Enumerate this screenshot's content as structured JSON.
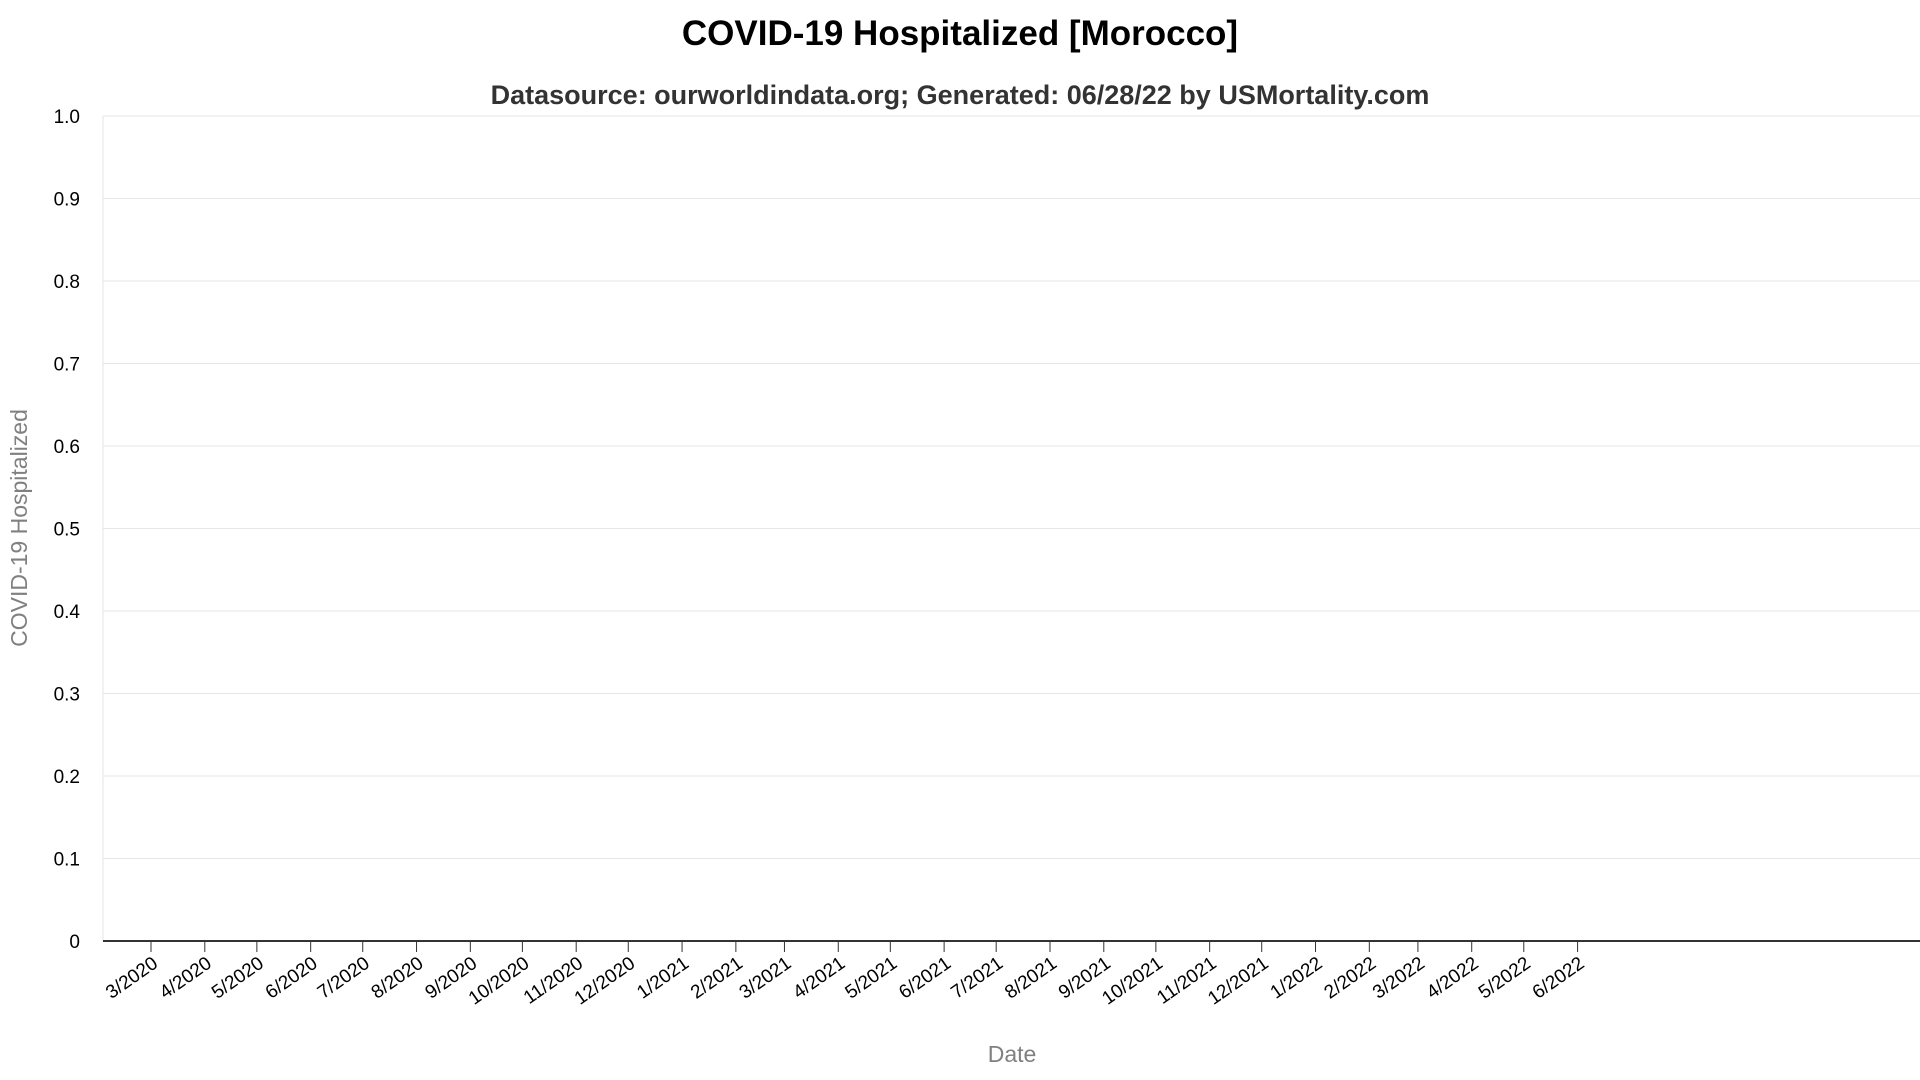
{
  "chart_data": {
    "type": "line",
    "title": "COVID-19 Hospitalized [Morocco]",
    "subtitle": "Datasource: ourworldindata.org; Generated: 06/28/22 by USMortality.com",
    "xlabel": "Date",
    "ylabel": "COVID-19 Hospitalized",
    "ylim": [
      0,
      1
    ],
    "y_ticks": [
      "0",
      "0.1",
      "0.2",
      "0.3",
      "0.4",
      "0.5",
      "0.6",
      "0.7",
      "0.8",
      "0.9",
      "1.0"
    ],
    "x_ticks": [
      "3/2020",
      "4/2020",
      "5/2020",
      "6/2020",
      "7/2020",
      "8/2020",
      "9/2020",
      "10/2020",
      "11/2020",
      "12/2020",
      "1/2021",
      "2/2021",
      "3/2021",
      "4/2021",
      "5/2021",
      "6/2021",
      "7/2021",
      "8/2021",
      "9/2021",
      "10/2021",
      "11/2021",
      "12/2021",
      "1/2022",
      "2/2022",
      "3/2022",
      "4/2022",
      "5/2022",
      "6/2022"
    ],
    "series": [],
    "grid": true,
    "colors": {
      "grid": "#e6e6e6",
      "axis": "#333333",
      "title": "#000000",
      "subtitle": "#333333",
      "axis_title": "#808080"
    }
  }
}
